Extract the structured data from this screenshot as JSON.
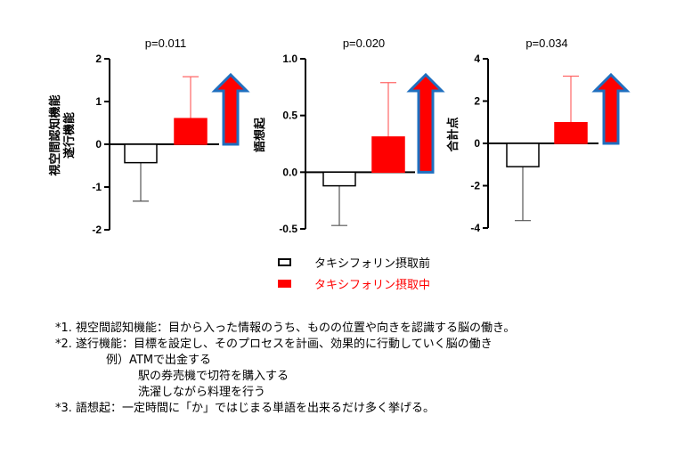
{
  "chart_data": [
    {
      "type": "bar",
      "title": "p=0.011",
      "ylabel_lines": [
        "視空間認知機能",
        "遂行機能"
      ],
      "ylim": [
        -2,
        2
      ],
      "yticks": [
        -2,
        -1,
        0,
        1,
        2
      ],
      "ytick_labels": [
        "-2",
        "-1",
        "0",
        "1",
        "2"
      ],
      "categories": [
        "タキシフォリン摂取前",
        "タキシフォリン摂取中"
      ],
      "values": [
        -0.43,
        0.6
      ],
      "errors": [
        0.9,
        0.98
      ],
      "arrow": "up"
    },
    {
      "type": "bar",
      "title": "p=0.020",
      "ylabel_lines": [
        "語想起"
      ],
      "ylim": [
        -0.5,
        1.0
      ],
      "yticks": [
        -0.5,
        0.0,
        0.5,
        1.0
      ],
      "ytick_labels": [
        "-0.5",
        "0.0",
        "0.5",
        "1.0"
      ],
      "categories": [
        "タキシフォリン摂取前",
        "タキシフォリン摂取中"
      ],
      "values": [
        -0.12,
        0.31
      ],
      "errors": [
        0.35,
        0.48
      ],
      "arrow": "up"
    },
    {
      "type": "bar",
      "title": "p=0.034",
      "ylabel_lines": [
        "合計点"
      ],
      "ylim": [
        -4,
        4
      ],
      "yticks": [
        -4,
        -2,
        0,
        2,
        4
      ],
      "ytick_labels": [
        "-4",
        "-2",
        "0",
        "2",
        "4"
      ],
      "categories": [
        "タキシフォリン摂取前",
        "タキシフォリン摂取中"
      ],
      "values": [
        -1.1,
        0.98
      ],
      "errors": [
        2.55,
        2.2
      ],
      "arrow": "up"
    }
  ],
  "legend": {
    "before": "タキシフォリン摂取前",
    "during": "タキシフォリン摂取中"
  },
  "colors": {
    "before_fill": "#ffffff",
    "during_fill": "#ff0000",
    "arrow_fill": "#ff0000",
    "arrow_outline": "#1f6fbf"
  },
  "notes": {
    "n1": "*1.  視空間認知機能：目から入った情報のうち、ものの位置や向きを認識する脳の働き。",
    "n2": "*2.  遂行機能：目標を設定し、そのプロセスを計画、効果的に行動していく脳の働き",
    "ex1": "例）ATMで出金する",
    "ex2": "駅の券売機で切符を購入する",
    "ex3": "洗濯しながら料理を行う",
    "n3": "*3.  語想起：一定時間に「か」ではじまる単語を出来るだけ多く挙げる。"
  }
}
